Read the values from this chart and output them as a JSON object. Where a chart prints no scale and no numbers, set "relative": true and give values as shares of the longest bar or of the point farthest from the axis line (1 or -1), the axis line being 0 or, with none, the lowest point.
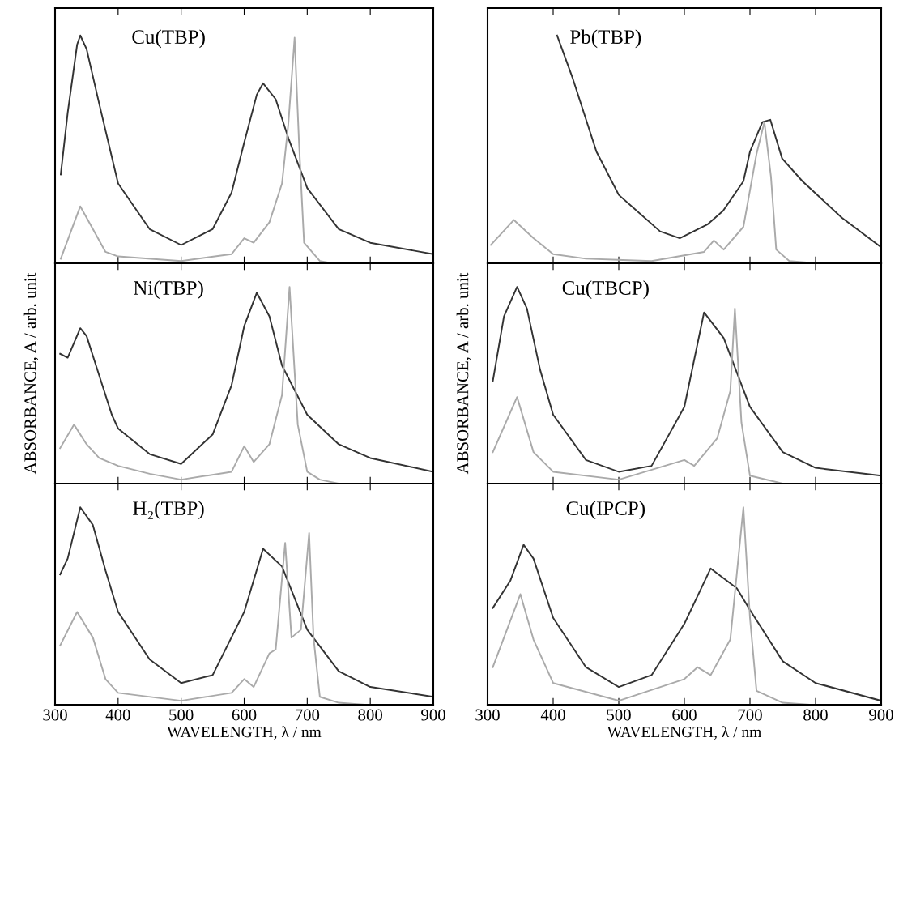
{
  "chart_data": [
    {
      "type": "line",
      "title": "Cu(TBP)",
      "relative": true,
      "xlim": [
        300,
        900
      ],
      "xticks": [
        300,
        400,
        500,
        600,
        700,
        800,
        900
      ],
      "tick_labels": false,
      "series": [
        {
          "color": "#333333",
          "x": [
            309,
            320,
            335,
            340,
            350,
            370,
            400,
            450,
            500,
            550,
            580,
            600,
            620,
            630,
            650,
            670,
            700,
            750,
            800,
            900
          ],
          "values": [
            0.39,
            0.66,
            0.96,
            1,
            0.94,
            0.7,
            0.35,
            0.15,
            0.08,
            0.15,
            0.31,
            0.53,
            0.74,
            0.79,
            0.72,
            0.55,
            0.33,
            0.15,
            0.09,
            0.04
          ]
        },
        {
          "color": "#aaaaaa",
          "x": [
            309,
            340,
            360,
            380,
            400,
            500,
            580,
            600,
            615,
            640,
            660,
            670,
            680,
            687,
            695,
            720,
            740
          ],
          "values": [
            0.02,
            0.25,
            0.15,
            0.05,
            0.03,
            0.01,
            0.04,
            0.11,
            0.09,
            0.18,
            0.35,
            0.61,
            0.99,
            0.53,
            0.09,
            0.01,
            0
          ]
        }
      ]
    },
    {
      "type": "line",
      "title": "Ni(TBP)",
      "ylabel": "ABSORBANCE, A / arb. unit",
      "relative": true,
      "xlim": [
        300,
        900
      ],
      "xticks": [
        300,
        400,
        500,
        600,
        700,
        800,
        900
      ],
      "tick_labels": false,
      "series": [
        {
          "color": "#333333",
          "x": [
            308,
            320,
            340,
            350,
            370,
            390,
            400,
            450,
            500,
            550,
            580,
            600,
            620,
            640,
            660,
            700,
            750,
            800,
            900
          ],
          "values": [
            0.66,
            0.64,
            0.79,
            0.75,
            0.55,
            0.35,
            0.28,
            0.15,
            0.1,
            0.25,
            0.5,
            0.8,
            0.97,
            0.85,
            0.6,
            0.35,
            0.2,
            0.13,
            0.06
          ]
        },
        {
          "color": "#aaaaaa",
          "x": [
            308,
            330,
            350,
            370,
            400,
            450,
            500,
            580,
            600,
            615,
            640,
            660,
            672,
            685,
            700,
            720,
            750
          ],
          "values": [
            0.18,
            0.3,
            0.2,
            0.13,
            0.09,
            0.05,
            0.02,
            0.06,
            0.19,
            0.11,
            0.2,
            0.45,
            1,
            0.3,
            0.06,
            0.02,
            0
          ]
        }
      ]
    },
    {
      "type": "line",
      "title": "H₂(TBP)",
      "xlabel": "WAVELENGTH, λ / nm",
      "relative": true,
      "xlim": [
        300,
        900
      ],
      "xticks": [
        300,
        400,
        500,
        600,
        700,
        800,
        900
      ],
      "tick_labels": "x",
      "series": [
        {
          "color": "#333333",
          "x": [
            308,
            320,
            340,
            360,
            380,
            400,
            450,
            500,
            550,
            600,
            630,
            660,
            700,
            750,
            800,
            900
          ],
          "values": [
            0.66,
            0.74,
            1,
            0.91,
            0.68,
            0.47,
            0.23,
            0.11,
            0.15,
            0.47,
            0.79,
            0.7,
            0.38,
            0.17,
            0.09,
            0.04
          ]
        },
        {
          "color": "#aaaaaa",
          "x": [
            308,
            335,
            360,
            380,
            400,
            500,
            580,
            600,
            615,
            640,
            650,
            665,
            675,
            690,
            703,
            710,
            720,
            750,
            790
          ],
          "values": [
            0.3,
            0.47,
            0.34,
            0.13,
            0.06,
            0.02,
            0.06,
            0.13,
            0.09,
            0.26,
            0.28,
            0.82,
            0.34,
            0.38,
            0.87,
            0.34,
            0.04,
            0.01,
            0
          ]
        }
      ]
    },
    {
      "type": "line",
      "title": "Pb(TBP)",
      "relative": true,
      "xlim": [
        300,
        900
      ],
      "xticks": [
        300,
        400,
        500,
        600,
        700,
        800,
        900
      ],
      "tick_labels": false,
      "series": [
        {
          "color": "#333333",
          "x": [
            406,
            430,
            466,
            500,
            563,
            593,
            635,
            659,
            690,
            700,
            719,
            731,
            749,
            780,
            840,
            900
          ],
          "values": [
            1,
            0.81,
            0.49,
            0.3,
            0.14,
            0.11,
            0.17,
            0.23,
            0.36,
            0.49,
            0.62,
            0.63,
            0.46,
            0.36,
            0.2,
            0.07
          ]
        },
        {
          "color": "#aaaaaa",
          "x": [
            305,
            340,
            370,
            400,
            450,
            550,
            630,
            645,
            660,
            690,
            710,
            722,
            732,
            740,
            760,
            800
          ],
          "values": [
            0.08,
            0.19,
            0.11,
            0.04,
            0.02,
            0.01,
            0.05,
            0.1,
            0.06,
            0.16,
            0.48,
            0.62,
            0.38,
            0.06,
            0.01,
            0
          ]
        }
      ]
    },
    {
      "type": "line",
      "title": "Cu(TBCP)",
      "ylabel": "ABSORBANCE, A / arb. unit",
      "relative": true,
      "xlim": [
        300,
        900
      ],
      "xticks": [
        300,
        400,
        500,
        600,
        700,
        800,
        900
      ],
      "tick_labels": false,
      "series": [
        {
          "color": "#333333",
          "x": [
            308,
            325,
            345,
            360,
            380,
            400,
            450,
            500,
            550,
            600,
            630,
            660,
            700,
            750,
            800,
            900
          ],
          "values": [
            0.52,
            0.85,
            1,
            0.89,
            0.58,
            0.35,
            0.12,
            0.06,
            0.09,
            0.39,
            0.87,
            0.74,
            0.39,
            0.16,
            0.08,
            0.04
          ]
        },
        {
          "color": "#aaaaaa",
          "x": [
            308,
            345,
            370,
            400,
            500,
            600,
            615,
            650,
            670,
            677,
            687,
            700,
            750
          ],
          "values": [
            0.16,
            0.44,
            0.16,
            0.06,
            0.02,
            0.12,
            0.09,
            0.23,
            0.47,
            0.89,
            0.31,
            0.04,
            0
          ]
        }
      ]
    },
    {
      "type": "line",
      "title": "Cu(IPCP)",
      "xlabel": "WAVELENGTH, λ / nm",
      "relative": true,
      "xlim": [
        300,
        900
      ],
      "xticks": [
        300,
        400,
        500,
        600,
        700,
        800,
        900
      ],
      "tick_labels": "x",
      "series": [
        {
          "color": "#333333",
          "x": [
            308,
            335,
            355,
            370,
            400,
            450,
            500,
            550,
            600,
            640,
            680,
            700,
            750,
            800,
            900
          ],
          "values": [
            0.49,
            0.63,
            0.81,
            0.74,
            0.44,
            0.19,
            0.09,
            0.15,
            0.41,
            0.69,
            0.59,
            0.48,
            0.22,
            0.11,
            0.02
          ]
        },
        {
          "color": "#aaaaaa",
          "x": [
            308,
            350,
            370,
            400,
            500,
            600,
            620,
            640,
            670,
            690,
            700,
            710,
            750,
            790
          ],
          "values": [
            0.19,
            0.56,
            0.33,
            0.11,
            0.02,
            0.13,
            0.19,
            0.15,
            0.33,
            1,
            0.44,
            0.07,
            0.01,
            0
          ]
        }
      ]
    }
  ]
}
